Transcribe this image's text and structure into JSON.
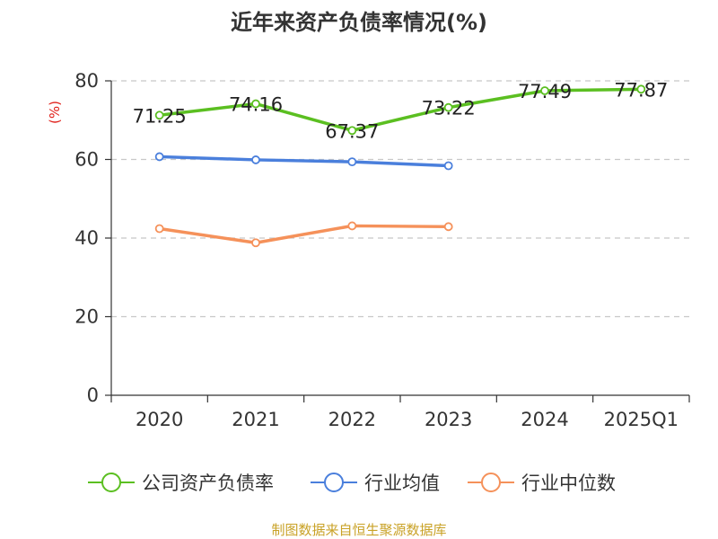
{
  "chart_data": {
    "type": "line",
    "title": "近年来资产负债率情况(%)",
    "ylabel": "(%)",
    "xlabel": "",
    "categories": [
      "2020",
      "2021",
      "2022",
      "2023",
      "2024",
      "2025Q1"
    ],
    "ylim": [
      0,
      80
    ],
    "yticks": [
      "0",
      "20",
      "40",
      "60",
      "80"
    ],
    "grid": true,
    "legend_position": "bottom",
    "series": [
      {
        "name": "公司资产负债率",
        "color": "#5bbf21",
        "values": [
          71.25,
          74.16,
          67.37,
          73.22,
          77.49,
          77.87
        ],
        "labels": [
          "71.25",
          "74.16",
          "67.37",
          "73.22",
          "77.49",
          "77.87"
        ]
      },
      {
        "name": "行业均值",
        "color": "#4a7fdc",
        "values": [
          60.7,
          59.9,
          59.4,
          58.4,
          null,
          null
        ]
      },
      {
        "name": "行业中位数",
        "color": "#f5915a",
        "values": [
          42.4,
          38.8,
          43.1,
          42.9,
          null,
          null
        ]
      }
    ]
  },
  "source": "制图数据来自恒生聚源数据库"
}
